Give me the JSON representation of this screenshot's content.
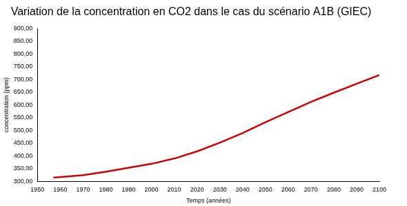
{
  "chart_data": {
    "type": "line",
    "title": "Variation de la concentration en CO2 dans le cas du scénario A1B (GIEC)",
    "x_label": "Temps (années)",
    "y_label": "concentration (ppm)",
    "x": [
      1957,
      1960,
      1970,
      1980,
      1990,
      2000,
      2010,
      2020,
      2030,
      2040,
      2050,
      2060,
      2070,
      2080,
      2090,
      2100
    ],
    "series": [
      {
        "name": "CO2",
        "color": "#cc0000",
        "values": [
          315,
          317,
          325,
          338,
          354,
          369,
          390,
          418,
          452,
          490,
          532,
          572,
          612,
          648,
          683,
          717
        ]
      }
    ],
    "xlim": [
      1950,
      2100
    ],
    "xticks": [
      1950,
      1960,
      1970,
      1980,
      1990,
      2000,
      2010,
      2020,
      2030,
      2040,
      2050,
      2060,
      2070,
      2080,
      2090,
      2100
    ],
    "ylim": [
      300,
      900
    ],
    "yticks": [
      {
        "value": 300,
        "label": "300,00"
      },
      {
        "value": 350,
        "label": "350,00"
      },
      {
        "value": 400,
        "label": "400,00"
      },
      {
        "value": 450,
        "label": "450,00"
      },
      {
        "value": 500,
        "label": "500,00"
      },
      {
        "value": 550,
        "label": "550,00"
      },
      {
        "value": 600,
        "label": "600,00"
      },
      {
        "value": 650,
        "label": "650,00"
      },
      {
        "value": 700,
        "label": "700,00"
      },
      {
        "value": 750,
        "label": "750,00"
      },
      {
        "value": 800,
        "label": "800,00"
      },
      {
        "value": 850,
        "label": "850,00"
      },
      {
        "value": 900,
        "label": "900,00"
      }
    ],
    "grid": false
  }
}
